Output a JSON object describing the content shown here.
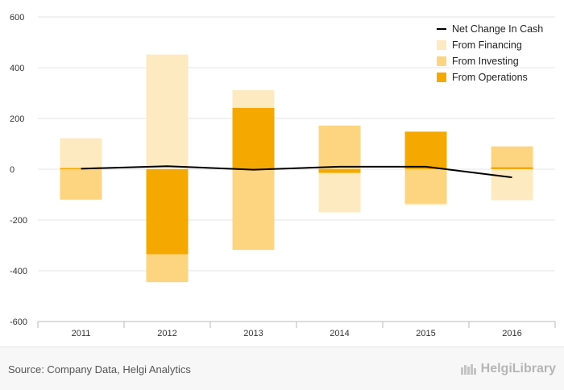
{
  "chart_data": {
    "type": "bar",
    "stacked": true,
    "categories": [
      "2011",
      "2012",
      "2013",
      "2014",
      "2015",
      "2016"
    ],
    "series": [
      {
        "name": "From Operations",
        "color": "#f5a800",
        "values": [
          5,
          -335,
          242,
          -15,
          148,
          8
        ]
      },
      {
        "name": "From Investing",
        "color": "#fdd580",
        "values": [
          -120,
          -110,
          -318,
          172,
          -136,
          82
        ]
      },
      {
        "name": "From Financing",
        "color": "#feeac0",
        "values": [
          117,
          452,
          70,
          -155,
          -2,
          -122
        ]
      }
    ],
    "line": {
      "name": "Net Change In Cash",
      "color": "#000000",
      "values": [
        2,
        12,
        -2,
        10,
        10,
        -32
      ]
    },
    "ylim": [
      -600,
      600
    ],
    "yticks": [
      "600",
      "400",
      "200",
      "0",
      "-200",
      "-400",
      "-600"
    ],
    "legend_order": [
      "Net Change In Cash",
      "From Financing",
      "From Investing",
      "From Operations"
    ],
    "legend_position": "top-right",
    "grid": true,
    "title": "",
    "xlabel": "",
    "ylabel": ""
  },
  "footer": {
    "source": "Source: Company Data, Helgi Analytics",
    "brand": "HelgiLibrary"
  }
}
